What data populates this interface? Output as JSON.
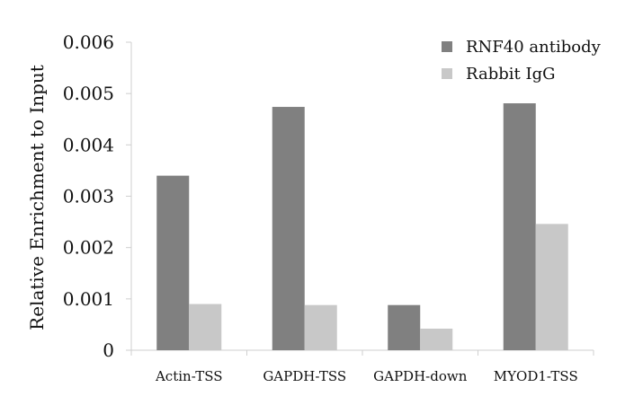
{
  "chart_data": {
    "type": "bar",
    "title": "",
    "xlabel": "",
    "ylabel": "Relative Enrichment to Input",
    "ylim": [
      0,
      0.006
    ],
    "yticks": [
      "0",
      "0.001",
      "0.002",
      "0.003",
      "0.004",
      "0.005",
      "0.006"
    ],
    "ytick_values": [
      0,
      0.001,
      0.002,
      0.003,
      0.004,
      0.005,
      0.006
    ],
    "categories": [
      "Actin-TSS",
      "GAPDH-TSS",
      "GAPDH-down",
      "MYOD1-TSS"
    ],
    "series": [
      {
        "name": "RNF40 antibody",
        "color": "#808080",
        "values": [
          0.0034,
          0.00474,
          0.00088,
          0.00481
        ]
      },
      {
        "name": "Rabbit IgG",
        "color": "#c8c8c8",
        "values": [
          0.0009,
          0.00088,
          0.00042,
          0.00246
        ]
      }
    ],
    "legend_position": "top-right",
    "grid": false
  }
}
